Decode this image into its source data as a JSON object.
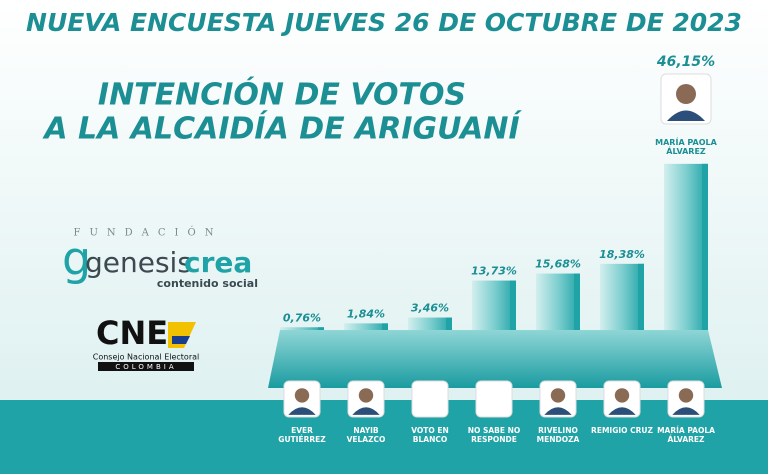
{
  "title": "NUEVA ENCUESTA JUEVES 26 DE OCTUBRE DE 2023",
  "subtitle": [
    "INTENCIÓN DE VOTOS",
    "A LA ALCAIDÍA DE ARIGUANÍ"
  ],
  "logos": {
    "fundacion": "FUNDACIÓN",
    "brand_a": "genesis",
    "brand_b": "crea",
    "tagline": "contenido social",
    "cne": "CNE",
    "cne_name": "Consejo Nacional Electoral",
    "cne_country": "COLOMBIA"
  },
  "chart_data": {
    "type": "bar",
    "categories": [
      "EVER GUTIÉRREZ",
      "NAYIB VELAZCO",
      "VOTO EN BLANCO",
      "NO SABE NO RESPONDE",
      "RIVELINO MENDOZA",
      "REMIGIO CRUZ",
      "MARÍA PAOLA ÁLVAREZ"
    ],
    "values": [
      0.76,
      1.84,
      3.46,
      13.73,
      15.68,
      18.38,
      46.15
    ],
    "value_labels": [
      "0,76%",
      "1,84%",
      "3,46%",
      "13,73%",
      "15,68%",
      "18,38%",
      "46,15%"
    ],
    "color": "#1fa3a6"
  }
}
